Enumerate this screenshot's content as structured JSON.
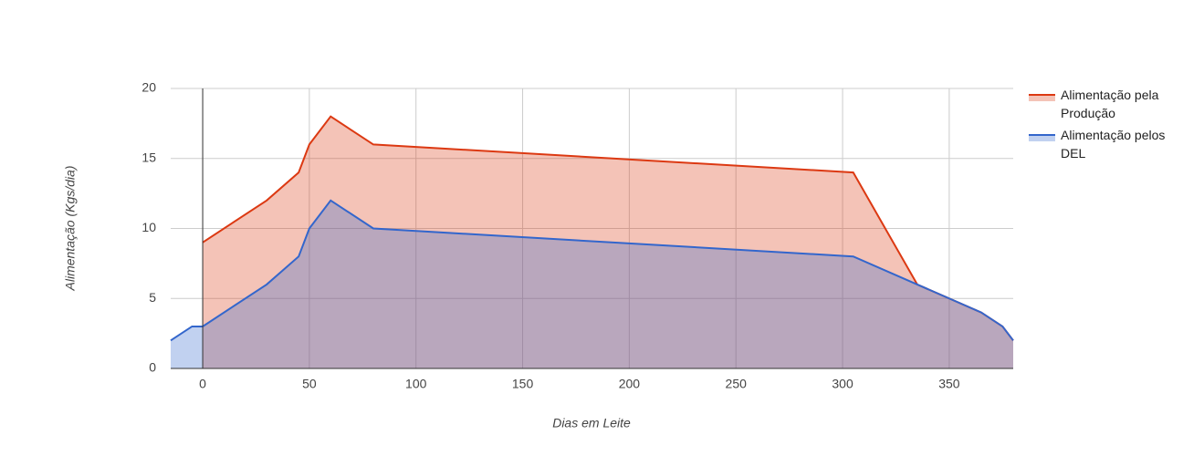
{
  "chart_data": {
    "type": "area",
    "x_label": "Dias em Leite",
    "y_label": "Alimentação (Kgs/dia)",
    "x": [
      -15,
      -5,
      0,
      30,
      45,
      50,
      60,
      80,
      305,
      335,
      350,
      365,
      375,
      380
    ],
    "series": [
      {
        "name": "Alimentação pela Produção",
        "color": "#dc3912",
        "values": [
          null,
          null,
          9,
          12,
          14,
          16,
          18,
          16,
          14,
          6,
          5,
          4,
          3,
          2
        ]
      },
      {
        "name": "Alimentação pelos DEL",
        "color": "#3366cc",
        "values": [
          2,
          3,
          3,
          6,
          8,
          10,
          12,
          10,
          8,
          6,
          5,
          4,
          3,
          2
        ]
      }
    ],
    "xlim": [
      -15,
      380
    ],
    "xticks": [
      0,
      50,
      100,
      150,
      200,
      250,
      300,
      350
    ],
    "ylim": [
      0,
      20
    ],
    "yticks": [
      0,
      5,
      10,
      15,
      20
    ],
    "grid": true,
    "legend": "right"
  }
}
